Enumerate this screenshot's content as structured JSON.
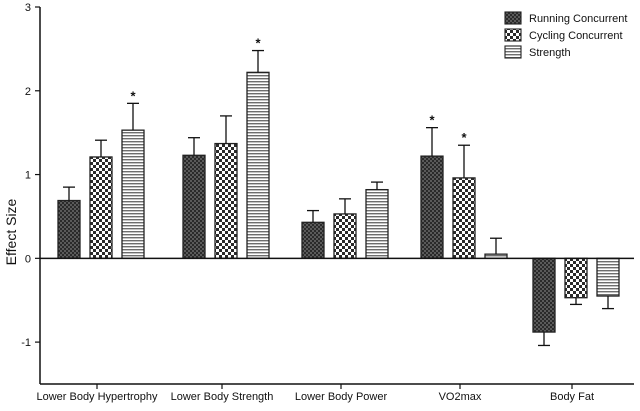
{
  "chart_data": {
    "type": "bar",
    "title": "",
    "xlabel": "",
    "ylabel": "Effect Size",
    "ylim": [
      -1.5,
      3
    ],
    "yticks": [
      "-1",
      "0",
      "1",
      "2",
      "3"
    ],
    "grid": false,
    "legend_position": "top-right",
    "categories": [
      "Lower Body Hypertrophy",
      "Lower Body Strength",
      "Lower Body Power",
      "VO2max",
      "Body Fat"
    ],
    "series": [
      {
        "name": "Running Concurrent",
        "pattern": "dense-check",
        "values": [
          0.69,
          1.23,
          0.43,
          1.22,
          -0.88
        ],
        "errors": [
          0.16,
          0.21,
          0.14,
          0.34,
          0.16
        ],
        "significant": [
          false,
          false,
          false,
          true,
          false
        ]
      },
      {
        "name": "Cycling Concurrent",
        "pattern": "checkerboard",
        "values": [
          1.21,
          1.37,
          0.53,
          0.96,
          -0.47
        ],
        "errors": [
          0.2,
          0.33,
          0.18,
          0.39,
          0.08
        ],
        "significant": [
          false,
          false,
          false,
          true,
          false
        ]
      },
      {
        "name": "Strength",
        "pattern": "horizontal-stripes",
        "values": [
          1.53,
          2.22,
          0.82,
          0.05,
          -0.45
        ],
        "errors": [
          0.32,
          0.26,
          0.09,
          0.19,
          0.15
        ],
        "significant": [
          true,
          true,
          false,
          false,
          false
        ]
      }
    ],
    "significance_marker": "*"
  },
  "colors": {
    "bar_stroke": "#222222",
    "pattern_dark": "#3a3a3a",
    "pattern_light": "#ffffff",
    "stripe": "#7a7a7a",
    "axis": "#111111"
  }
}
